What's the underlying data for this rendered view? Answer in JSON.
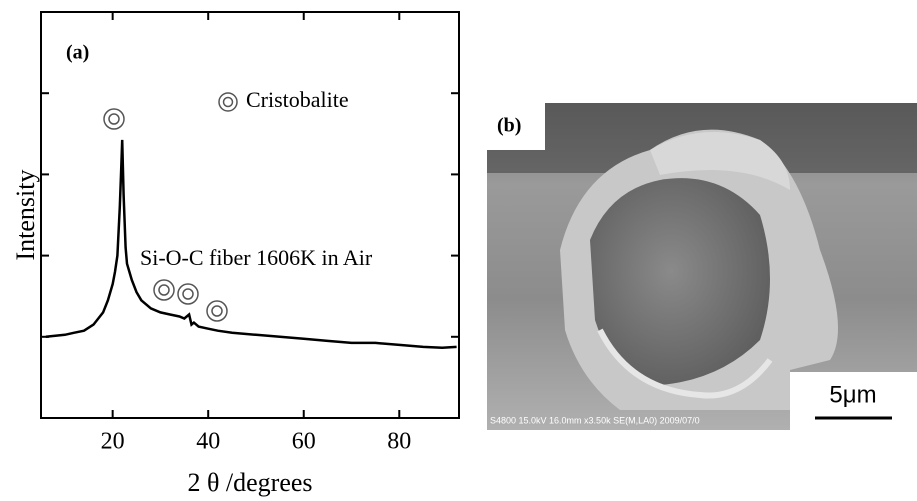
{
  "chart_data": {
    "type": "line",
    "panel_label": "(a)",
    "legend_text": "Cristobalite",
    "annotation": "Si-O-C fiber  1606K in Air",
    "x_label": "2 θ /degrees",
    "y_label": "Intensity",
    "x": [
      6,
      10,
      12,
      14,
      16,
      18,
      19,
      20,
      20.5,
      21,
      21.5,
      21.8,
      22,
      22.3,
      22.7,
      23,
      24,
      25,
      26,
      28,
      30,
      32,
      34,
      35,
      36,
      36.5,
      37,
      38,
      40,
      42,
      45,
      50,
      55,
      60,
      65,
      70,
      75,
      80,
      85,
      89,
      92
    ],
    "values": [
      20,
      20.5,
      21,
      21.5,
      23,
      26,
      29,
      33,
      36,
      40,
      52,
      62,
      68.5,
      55,
      42,
      38,
      34,
      31,
      29,
      27,
      26,
      25.5,
      25,
      24.5,
      25.5,
      23,
      23.5,
      22.5,
      22,
      21.5,
      21,
      20.5,
      20,
      19.5,
      19,
      18.5,
      18.5,
      18,
      17.5,
      17.3,
      17.5
    ],
    "color": "#000000",
    "xlim": [
      5,
      92.5
    ],
    "xticks": [
      20,
      40,
      60,
      80
    ],
    "ylim": [
      0,
      100
    ],
    "yticks": [
      20,
      40,
      60,
      80
    ]
  },
  "image_panel": {
    "label": "(b)",
    "scale_bar": "5μm",
    "info_strip": "S4800 15.0kV 16.0mm x3.50k SE(M,LA0) 2009/07/0"
  }
}
